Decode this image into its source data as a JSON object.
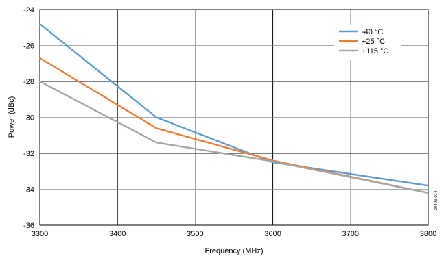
{
  "chart_data": {
    "type": "line",
    "xlabel": "Frequency (MHz)",
    "ylabel": "Power (dBc)",
    "xlim": [
      3300,
      3800
    ],
    "ylim": [
      -36,
      -24
    ],
    "x_ticks": [
      "3300",
      "3400",
      "3500",
      "3600",
      "3700",
      "3800"
    ],
    "y_ticks": [
      "-24",
      "-26",
      "-28",
      "-30",
      "-32",
      "-34",
      "-36"
    ],
    "grid": true,
    "legend_position": "top-right",
    "series": [
      {
        "name": "-40 °C",
        "color": "#5b9bd5",
        "x": [
          3300,
          3450,
          3600,
          3800
        ],
        "y": [
          -24.8,
          -30.0,
          -32.5,
          -33.8
        ]
      },
      {
        "name": "+25 °C",
        "color": "#ed7d31",
        "x": [
          3300,
          3450,
          3600,
          3800
        ],
        "y": [
          -26.7,
          -30.6,
          -32.4,
          -34.2
        ]
      },
      {
        "name": "+115 °C",
        "color": "#a5a5a5",
        "x": [
          3300,
          3450,
          3600,
          3800
        ],
        "y": [
          -28.0,
          -31.4,
          -32.45,
          -34.2
        ]
      }
    ],
    "figure_code": "20496-014"
  }
}
